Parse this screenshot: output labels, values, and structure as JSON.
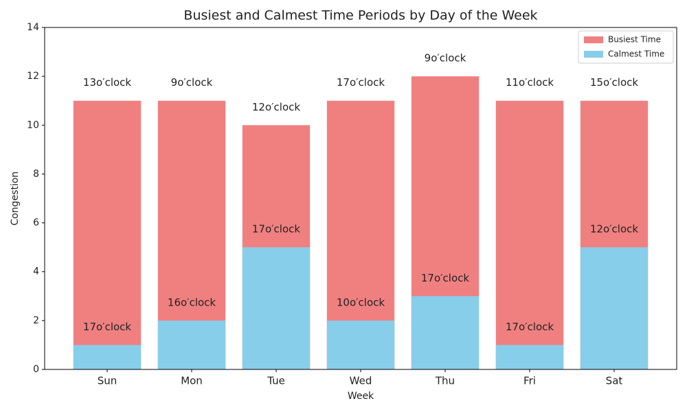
{
  "chart_data": {
    "type": "bar",
    "title": "Busiest and Calmest Time Periods by Day of the Week",
    "x_label": "Week",
    "y_label": "Congestion",
    "categories": [
      "Sun",
      "Mon",
      "Tue",
      "Wed",
      "Thu",
      "Fri",
      "Sat"
    ],
    "series": [
      {
        "name": "Busiest Time",
        "color": "#f08080",
        "values": [
          11,
          11,
          10,
          11,
          12,
          11,
          11
        ],
        "labels": [
          "13o′clock",
          "9o′clock",
          "12o′clock",
          "17o′clock",
          "9o′clock",
          "11o′clock",
          "15o′clock"
        ]
      },
      {
        "name": "Calmest Time",
        "color": "#87ceeb",
        "values": [
          1,
          2,
          5,
          2,
          3,
          1,
          5
        ],
        "labels": [
          "17o′clock",
          "16o′clock",
          "17o′clock",
          "10o′clock",
          "17o′clock",
          "17o′clock",
          "12o′clock"
        ]
      }
    ],
    "ylim": [
      0,
      14
    ],
    "yticks": [
      0,
      2,
      4,
      6,
      8,
      10,
      12,
      14
    ],
    "legend": "upper right"
  }
}
